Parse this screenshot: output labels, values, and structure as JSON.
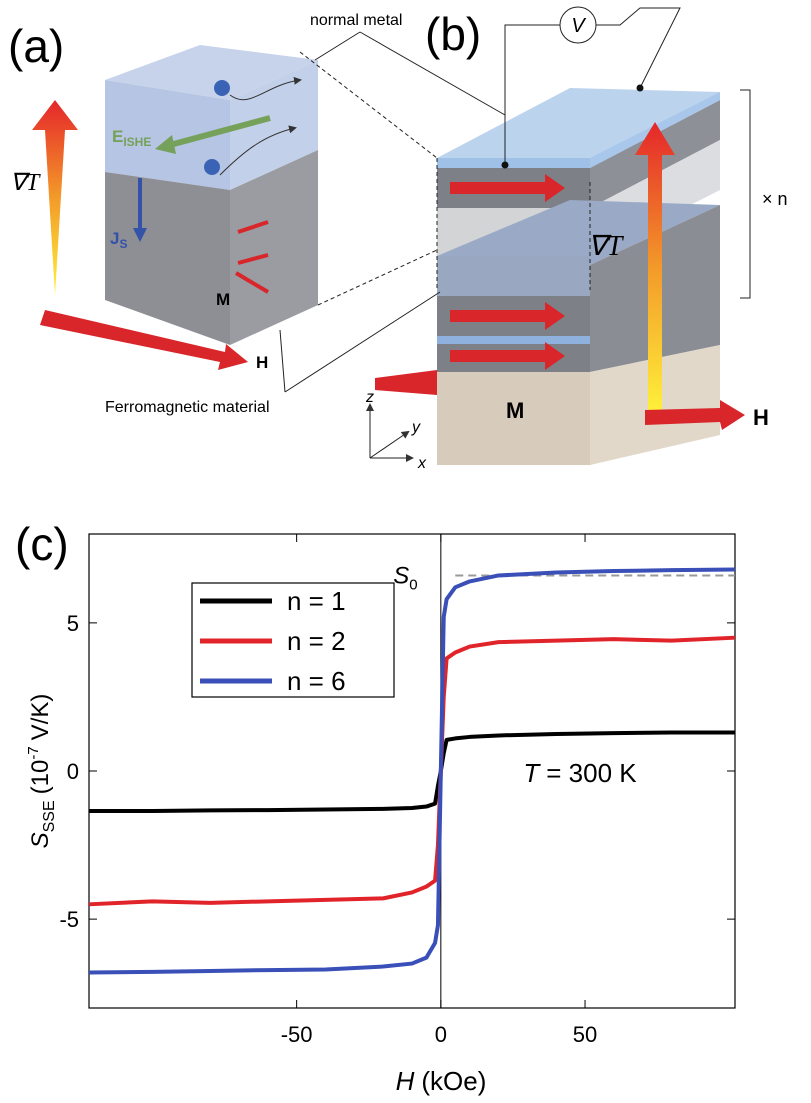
{
  "panel_a": {
    "label": "(a)",
    "grad_t": "∇T",
    "e_ishe": {
      "main": "E",
      "sub": "ISHE"
    },
    "j_s": {
      "main": "J",
      "sub": "S"
    },
    "m": "M",
    "h": "H"
  },
  "panel_b": {
    "label": "(b)",
    "normal_metal": "normal metal",
    "ferromagnetic": "Ferromagnetic material",
    "v": "V",
    "times_n": "× n",
    "grad_t": "∇T",
    "m": "M",
    "h": "H",
    "axes": {
      "z": "z",
      "y": "y",
      "x": "x"
    }
  },
  "chart_data": {
    "type": "line",
    "label": "(c)",
    "x_label": {
      "symbol": "H",
      "unit": "(kOe)"
    },
    "y_label": {
      "symbol": "S",
      "sub": "SSE",
      "unit_pre": "(10",
      "sup": "-7",
      "unit_post": "V/K)"
    },
    "annotation": {
      "symbol": "T",
      "rest": "= 300 K"
    },
    "reference": {
      "label": {
        "main": "S",
        "sub": "0"
      },
      "y": 6.6,
      "x_start": 5,
      "color": "#999999"
    },
    "xlim": [
      -122,
      102
    ],
    "ylim": [
      -8,
      8
    ],
    "xticks": [
      -50,
      0,
      50
    ],
    "yticks": [
      -5,
      0,
      5
    ],
    "legend": "upper left",
    "x": [
      -122,
      -100,
      -80,
      -60,
      -40,
      -20,
      -10,
      -5,
      -2,
      -1,
      0,
      1,
      2,
      5,
      10,
      20,
      40,
      60,
      80,
      102
    ],
    "series": [
      {
        "name": "n = 1",
        "color": "#000000",
        "values": [
          -1.35,
          -1.35,
          -1.33,
          -1.32,
          -1.3,
          -1.28,
          -1.25,
          -1.2,
          -1.1,
          -0.5,
          0,
          0.6,
          1.05,
          1.1,
          1.15,
          1.2,
          1.25,
          1.28,
          1.3,
          1.3
        ]
      },
      {
        "name": "n = 2",
        "color": "#e0242a",
        "values": [
          -4.5,
          -4.4,
          -4.45,
          -4.4,
          -4.35,
          -4.3,
          -4.1,
          -3.9,
          -3.7,
          -2.5,
          0,
          2.5,
          3.8,
          4.0,
          4.2,
          4.35,
          4.4,
          4.45,
          4.4,
          4.5
        ]
      },
      {
        "name": "n = 6",
        "color": "#3a4fb8",
        "values": [
          -6.8,
          -6.78,
          -6.75,
          -6.72,
          -6.7,
          -6.6,
          -6.5,
          -6.3,
          -5.8,
          -5.2,
          0,
          5.2,
          5.8,
          6.2,
          6.4,
          6.6,
          6.7,
          6.75,
          6.78,
          6.8
        ]
      }
    ]
  }
}
